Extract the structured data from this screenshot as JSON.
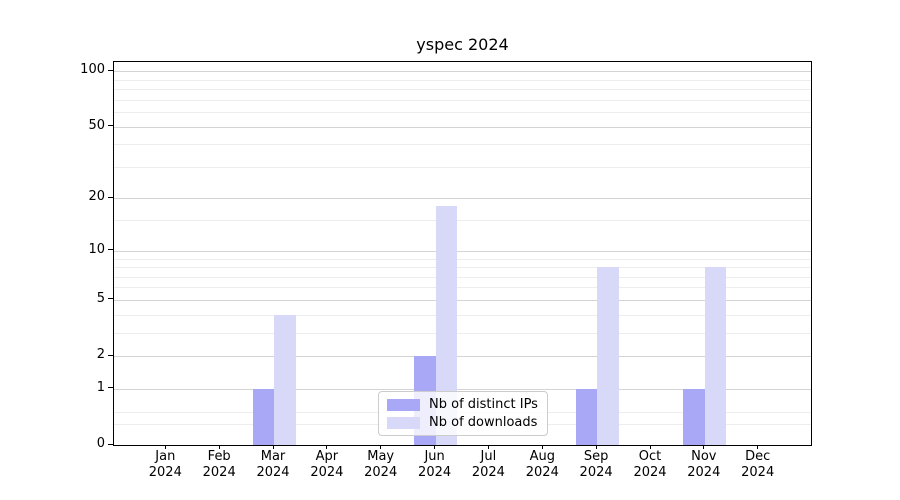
{
  "title": "yspec 2024",
  "chart_data": {
    "type": "bar",
    "title": "yspec 2024",
    "categories": [
      "Jan",
      "Feb",
      "Mar",
      "Apr",
      "May",
      "Jun",
      "Jul",
      "Aug",
      "Sep",
      "Oct",
      "Nov",
      "Dec"
    ],
    "year_label": "2024",
    "series": [
      {
        "name": "Nb of distinct IPs",
        "color": "#a8a8f6",
        "values": [
          0,
          0,
          1,
          0,
          0,
          2,
          0,
          0,
          1,
          0,
          1,
          0
        ]
      },
      {
        "name": "Nb of downloads",
        "color": "#d8d8f8",
        "values": [
          0,
          0,
          4,
          0,
          0,
          18,
          0,
          0,
          8,
          0,
          8,
          0
        ]
      }
    ],
    "yscale": "log1p",
    "ylim": [
      0,
      112
    ],
    "y_major_ticks": [
      0,
      1,
      2,
      5,
      10,
      20,
      50,
      100
    ],
    "y_minor_ticks": [
      0.3,
      0.5,
      3,
      4,
      6,
      7,
      8,
      9,
      15,
      30,
      40,
      60,
      70,
      80,
      90
    ],
    "grid": "major+minor",
    "legend_position": "lower center"
  },
  "legend": {
    "items": [
      {
        "label": "Nb of distinct IPs"
      },
      {
        "label": "Nb of downloads"
      }
    ]
  },
  "colors": {
    "ips_bar": "#a8a8f6",
    "downloads_bar": "#d8d8f8",
    "grid_major": "#d4d4d4",
    "grid_minor": "#ededed",
    "axis": "#000000",
    "legend_border": "#cccccc",
    "text": "#000000"
  }
}
